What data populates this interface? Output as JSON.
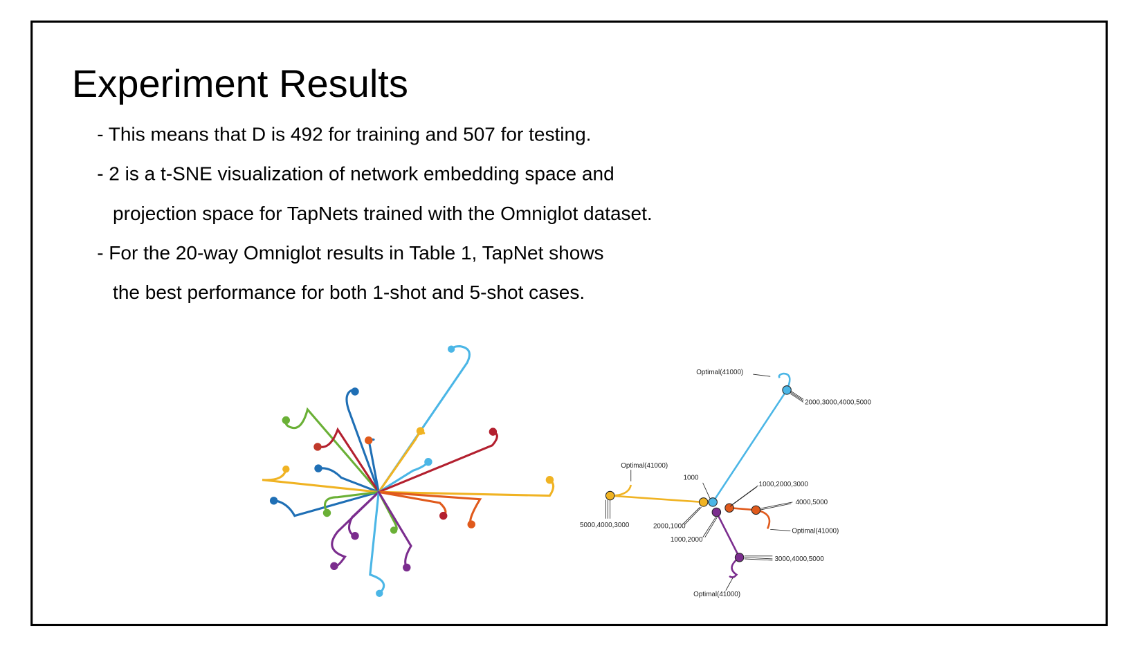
{
  "title": "Experiment Results",
  "bullets": [
    [
      "- This means that D is 492 for training and 507 for testing."
    ],
    [
      "- 2 is a t-SNE visualization of network embedding space and",
      "projection space for TapNets trained with the Omniglot dataset."
    ],
    [
      "- For the 20-way Omniglot results in Table 1, TapNet shows",
      "the best performance for both 1-shot and 5-shot cases."
    ]
  ],
  "figure": {
    "labels": [
      "Optimal(41000)",
      "2000,3000,4000,5000",
      "Optimal(41000)",
      "1000",
      "1000,2000,3000",
      "4000,5000",
      "5000,4000,3000",
      "2000,1000",
      "1000,2000",
      "Optimal(41000)",
      "3000,4000,5000",
      "Optimal(41000)"
    ]
  }
}
